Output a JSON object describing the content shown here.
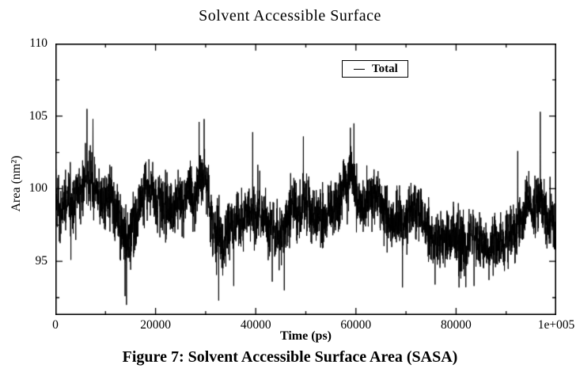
{
  "colors": {
    "background": "#ffffff",
    "line": "#000000",
    "axis": "#000000",
    "text": "#000000"
  },
  "figure": {
    "caption": "Figure 7: Solvent Accessible Surface Area (SASA)"
  },
  "chart_data": {
    "type": "line",
    "title": "Solvent Accessible Surface",
    "xlabel": "Time (ps)",
    "ylabel": "Area (nm²)",
    "xlim": [
      0,
      100000
    ],
    "ylim": [
      91.3,
      110
    ],
    "grid": false,
    "xticks": {
      "major": [
        0,
        20000,
        40000,
        60000,
        80000,
        100000
      ],
      "minor": [
        10000,
        30000,
        50000,
        70000,
        90000
      ],
      "labels": [
        "0",
        "20000",
        "40000",
        "60000",
        "80000",
        "1e+005"
      ]
    },
    "yticks": {
      "major": [
        95,
        100,
        105,
        110
      ],
      "minor": [
        92.5,
        97.5,
        102.5,
        107.5
      ],
      "labels": [
        "95",
        "100",
        "105",
        "110"
      ]
    },
    "legend": {
      "position": "inside-top-center-right",
      "entries": [
        {
          "label": "Total",
          "color": "#000000"
        }
      ]
    },
    "series": [
      {
        "name": "Total",
        "color": "#000000",
        "n_points": 4200,
        "seed": 20240717,
        "noise": {
          "fast_sigma": 0.95,
          "slow_alpha": 0.985,
          "slow_sigma": 0.11,
          "clip_from_trend": 3.0,
          "value_min": 91.9,
          "value_max": 105.6
        },
        "trend": [
          [
            0,
            99.6
          ],
          [
            1000,
            98.6
          ],
          [
            2500,
            99.0
          ],
          [
            4500,
            99.6
          ],
          [
            6500,
            100.7
          ],
          [
            8000,
            100.1
          ],
          [
            10000,
            98.9
          ],
          [
            12000,
            98.3
          ],
          [
            13500,
            96.4
          ],
          [
            14800,
            96.0
          ],
          [
            16500,
            98.2
          ],
          [
            18000,
            99.2
          ],
          [
            20000,
            98.7
          ],
          [
            22500,
            98.2
          ],
          [
            24500,
            99.0
          ],
          [
            26500,
            99.4
          ],
          [
            28500,
            100.2
          ],
          [
            30000,
            100.0
          ],
          [
            31500,
            97.6
          ],
          [
            33000,
            96.4
          ],
          [
            34500,
            97.0
          ],
          [
            36500,
            97.7
          ],
          [
            38500,
            98.5
          ],
          [
            40000,
            98.8
          ],
          [
            42000,
            98.2
          ],
          [
            44000,
            97.7
          ],
          [
            45500,
            97.0
          ],
          [
            47000,
            98.1
          ],
          [
            49000,
            98.8
          ],
          [
            51500,
            98.8
          ],
          [
            53500,
            98.1
          ],
          [
            55500,
            98.1
          ],
          [
            57500,
            99.0
          ],
          [
            59000,
            100.0
          ],
          [
            60500,
            99.3
          ],
          [
            62500,
            98.5
          ],
          [
            64500,
            98.2
          ],
          [
            66500,
            97.8
          ],
          [
            68500,
            97.2
          ],
          [
            70500,
            97.5
          ],
          [
            72500,
            97.1
          ],
          [
            74500,
            96.7
          ],
          [
            76500,
            96.3
          ],
          [
            78500,
            96.2
          ],
          [
            80500,
            96.0
          ],
          [
            82500,
            96.3
          ],
          [
            84500,
            96.2
          ],
          [
            86500,
            96.7
          ],
          [
            88500,
            97.1
          ],
          [
            90500,
            97.5
          ],
          [
            92500,
            98.1
          ],
          [
            94500,
            98.5
          ],
          [
            96000,
            99.2
          ],
          [
            97200,
            100.3
          ],
          [
            98200,
            98.7
          ],
          [
            100000,
            98.5
          ]
        ],
        "extremes": [
          [
            3100,
            95.1
          ],
          [
            6300,
            105.5
          ],
          [
            7500,
            104.8
          ],
          [
            13900,
            92.6
          ],
          [
            14200,
            92.0
          ],
          [
            28700,
            104.6
          ],
          [
            29700,
            104.8
          ],
          [
            32600,
            92.3
          ],
          [
            35600,
            93.3
          ],
          [
            39400,
            103.9
          ],
          [
            43300,
            93.6
          ],
          [
            45700,
            93.0
          ],
          [
            49500,
            103.6
          ],
          [
            58900,
            104.2
          ],
          [
            59600,
            104.5
          ],
          [
            69300,
            93.2
          ],
          [
            75800,
            93.4
          ],
          [
            80600,
            93.2
          ],
          [
            83600,
            93.3
          ],
          [
            92300,
            102.6
          ],
          [
            96800,
            105.3
          ]
        ]
      }
    ]
  }
}
